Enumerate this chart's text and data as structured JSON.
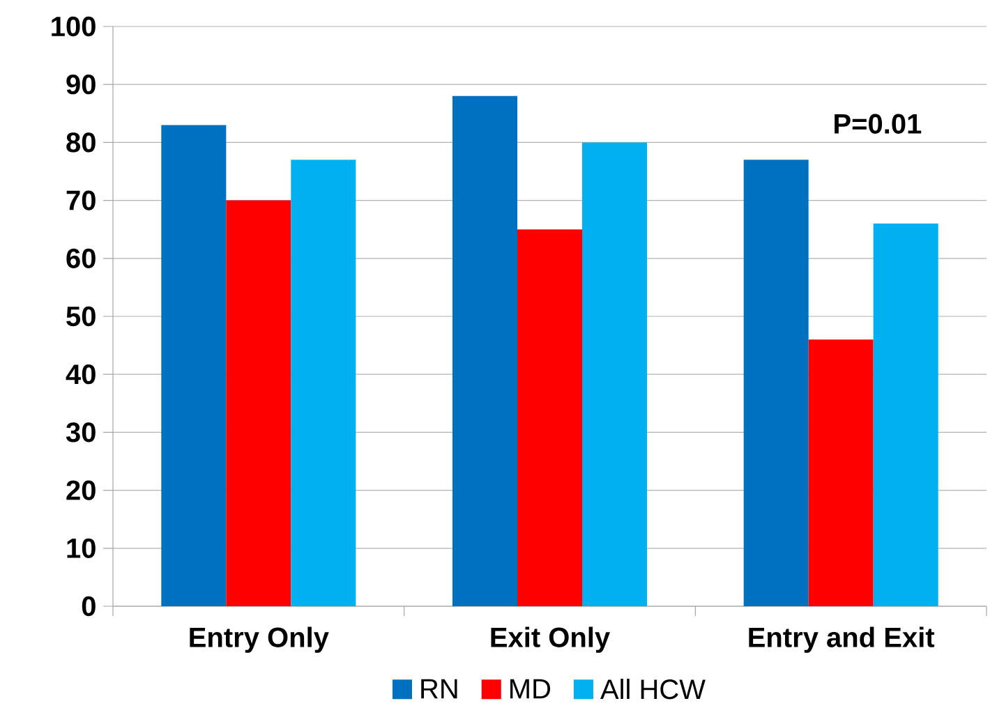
{
  "chart_data": {
    "type": "bar",
    "categories": [
      "Entry Only",
      "Exit Only",
      "Entry and Exit"
    ],
    "series": [
      {
        "name": "RN",
        "color": "#0070c0",
        "values": [
          83,
          88,
          77
        ]
      },
      {
        "name": "MD",
        "color": "#ff0000",
        "values": [
          70,
          65,
          46
        ]
      },
      {
        "name": "All HCW",
        "color": "#00b0f0",
        "values": [
          77,
          80,
          66
        ]
      }
    ],
    "ylim": [
      0,
      100
    ],
    "yticks": [
      0,
      10,
      20,
      30,
      40,
      50,
      60,
      70,
      80,
      90,
      100
    ],
    "grid": "y",
    "legend": "bottom",
    "annotations": [
      "P=0.01"
    ]
  }
}
